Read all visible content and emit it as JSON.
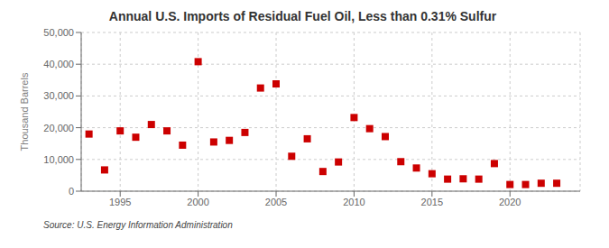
{
  "chart_data": {
    "type": "scatter",
    "title": "Annual U.S. Imports of Residual Fuel Oil, Less than 0.31% Sulfur",
    "ylabel": "Thousand Barrels",
    "annotations": [
      "Source: U.S. Energy Information Administration"
    ],
    "x": [
      1993,
      1994,
      1995,
      1996,
      1997,
      1998,
      1999,
      2000,
      2001,
      2002,
      2003,
      2004,
      2005,
      2006,
      2007,
      2008,
      2009,
      2010,
      2011,
      2012,
      2013,
      2014,
      2015,
      2016,
      2017,
      2018,
      2019,
      2020,
      2021,
      2022,
      2023
    ],
    "values": [
      18000,
      6700,
      19000,
      17000,
      21000,
      19000,
      14500,
      40800,
      15500,
      16000,
      18500,
      32500,
      33800,
      11000,
      16500,
      6200,
      9200,
      23200,
      19700,
      17200,
      9300,
      7300,
      5500,
      3800,
      3900,
      3800,
      8700,
      2100,
      2100,
      2500,
      2500
    ],
    "color": "#cc0000",
    "marker": "square",
    "xlim": [
      1992.5,
      2024.5
    ],
    "xticks": [
      1995,
      2000,
      2005,
      2010,
      2015,
      2020
    ],
    "ylim": [
      0,
      50000
    ],
    "yticks": [
      0,
      {
        "value": 10000,
        "label": "10,000"
      },
      {
        "value": 20000,
        "label": "20,000"
      },
      {
        "value": 30000,
        "label": "30,000"
      },
      {
        "value": 40000,
        "label": "40,000"
      },
      {
        "value": 50000,
        "label": "50,000"
      }
    ],
    "grid": true
  }
}
